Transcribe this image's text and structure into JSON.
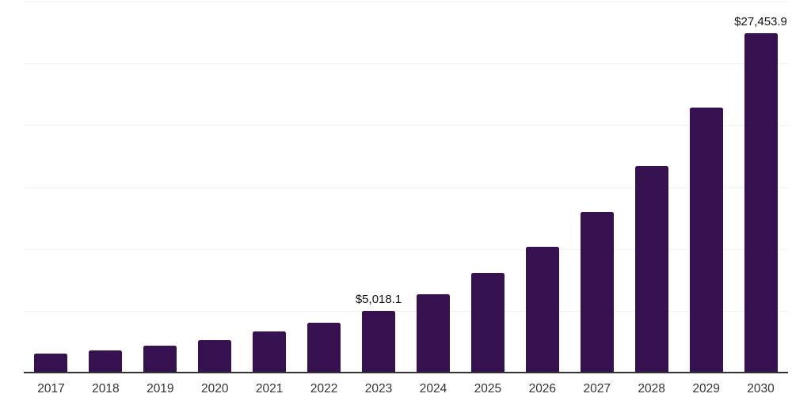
{
  "chart_data": {
    "type": "bar",
    "title": "",
    "xlabel": "",
    "ylabel": "",
    "categories": [
      "2017",
      "2018",
      "2019",
      "2020",
      "2021",
      "2022",
      "2023",
      "2024",
      "2025",
      "2026",
      "2027",
      "2028",
      "2029",
      "2030"
    ],
    "values": [
      1555,
      1775,
      2195,
      2625,
      3310,
      4015,
      5018.1,
      6360,
      8070,
      10165,
      12980,
      16670,
      21410,
      27453.9
    ],
    "data_labels": [
      {
        "category": "2023",
        "text": "$5,018.1"
      },
      {
        "category": "2030",
        "text": "$27,453.9"
      }
    ],
    "ylim": [
      0,
      30000
    ],
    "gridline_step": 5000,
    "grid": true,
    "legend": false,
    "y_tick_labels_visible": false,
    "colors": {
      "bar": "#351150",
      "gridline": "#f0f0f2",
      "axis_line": "#333333",
      "tick_label": "#333333",
      "data_label": "#111111",
      "background": "#ffffff"
    }
  }
}
